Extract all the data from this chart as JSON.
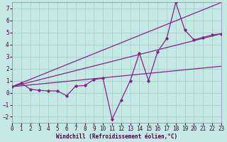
{
  "xlabel": "Windchill (Refroidissement éolien,°C)",
  "bg_color": "#c4e8e4",
  "grid_color": "#a8d0cc",
  "line_color": "#882288",
  "xlim": [
    0,
    23
  ],
  "ylim": [
    -2.5,
    7.5
  ],
  "xticks": [
    0,
    1,
    2,
    3,
    4,
    5,
    6,
    7,
    8,
    9,
    10,
    11,
    12,
    13,
    14,
    15,
    16,
    17,
    18,
    19,
    20,
    21,
    22,
    23
  ],
  "yticks": [
    -2,
    -1,
    0,
    1,
    2,
    3,
    4,
    5,
    6,
    7
  ],
  "series1_x": [
    0,
    1,
    2,
    3,
    4,
    5,
    6,
    7,
    8,
    9,
    10,
    11,
    12,
    13,
    14,
    15,
    16,
    17,
    18,
    19,
    20,
    21,
    22,
    23
  ],
  "series1_y": [
    0.5,
    0.8,
    0.3,
    0.2,
    0.15,
    0.15,
    -0.25,
    0.55,
    0.6,
    1.1,
    1.2,
    -2.2,
    -0.6,
    1.0,
    3.3,
    1.0,
    3.4,
    4.5,
    7.5,
    5.2,
    4.4,
    4.6,
    4.8,
    4.9
  ],
  "line2_x": [
    0,
    23
  ],
  "line2_y": [
    0.5,
    7.5
  ],
  "line3_x": [
    0,
    23
  ],
  "line3_y": [
    0.5,
    4.9
  ],
  "line4_x": [
    0,
    23
  ],
  "line4_y": [
    0.5,
    2.2
  ],
  "xlabel_fontsize": 5.5,
  "tick_fontsize": 5.5
}
